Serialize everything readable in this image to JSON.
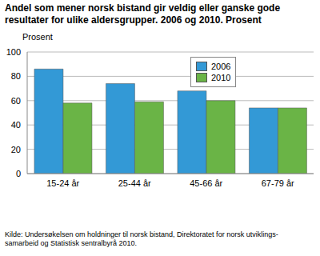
{
  "chart_data": {
    "type": "bar",
    "title": "Andel som mener norsk bistand gir veldig eller ganske gode resultater for ulike aldersgrupper. 2006 og 2010. Prosent",
    "y_label": "Prosent",
    "source": "Kilde: Undersøkelsen om holdninger til norsk bistand, Direktoratet for norsk utviklings-\nsamarbeid og Statistisk sentralbyrå 2010.",
    "categories": [
      "15-24 år",
      "25-44 år",
      "45-66 år",
      "67-79 år"
    ],
    "series": [
      {
        "name": "2006",
        "color": "#3399d6",
        "values": [
          86,
          74,
          68,
          54
        ]
      },
      {
        "name": "2010",
        "color": "#6ab446",
        "values": [
          58,
          59,
          60,
          54
        ]
      }
    ],
    "ylim": [
      0,
      100
    ],
    "yticks": [
      0,
      20,
      40,
      60,
      80,
      100
    ],
    "grid": true,
    "legend": "top right"
  }
}
